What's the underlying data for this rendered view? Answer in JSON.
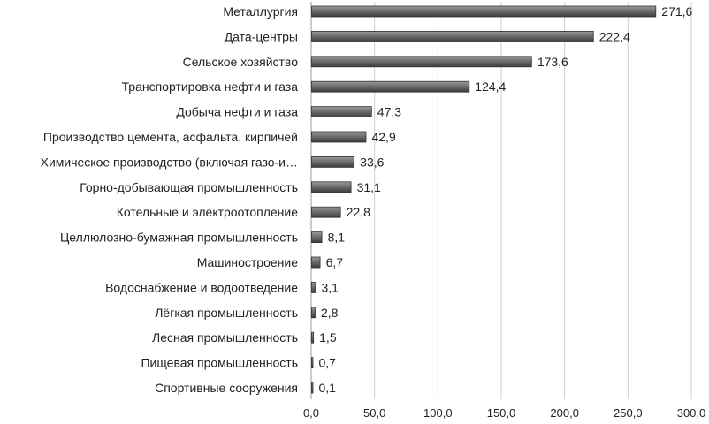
{
  "chart_data": {
    "type": "bar",
    "orientation": "horizontal",
    "categories": [
      "Металлургия",
      "Дата-центры",
      "Сельское хозяйство",
      "Транспортировка нефти и газа",
      "Добыча нефти и газа",
      "Производство цемента, асфальта, кирпичей",
      "Химическое производство (включая газо-и…",
      "Горно-добывающая промышленность",
      "Котельные и электроотопление",
      "Целлюлозно-бумажная промышленность",
      "Машиностроение",
      "Водоснабжение и водоотведение",
      "Лёгкая промышленность",
      "Лесная промышленность",
      "Пищевая промышленность",
      "Спортивные сооружения"
    ],
    "values": [
      271.6,
      222.4,
      173.6,
      124.4,
      47.3,
      42.9,
      33.6,
      31.1,
      22.8,
      8.1,
      6.7,
      3.1,
      2.8,
      1.5,
      0.7,
      0.1
    ],
    "value_labels": [
      "271,6",
      "222,4",
      "173,6",
      "124,4",
      "47,3",
      "42,9",
      "33,6",
      "31,1",
      "22,8",
      "8,1",
      "6,7",
      "3,1",
      "2,8",
      "1,5",
      "0,7",
      "0,1"
    ],
    "xlim": [
      0,
      300
    ],
    "xticks": [
      0,
      50,
      100,
      150,
      200,
      250,
      300
    ],
    "xtick_labels": [
      "0,0",
      "50,0",
      "100,0",
      "150,0",
      "200,0",
      "250,0",
      "300,0"
    ],
    "title": "",
    "xlabel": "",
    "ylabel": "",
    "grid": "vertical",
    "legend": "none",
    "bar_color": "#6e6e6e",
    "bar_edge_color": "#333333",
    "grid_color": "#cfcfcf"
  }
}
